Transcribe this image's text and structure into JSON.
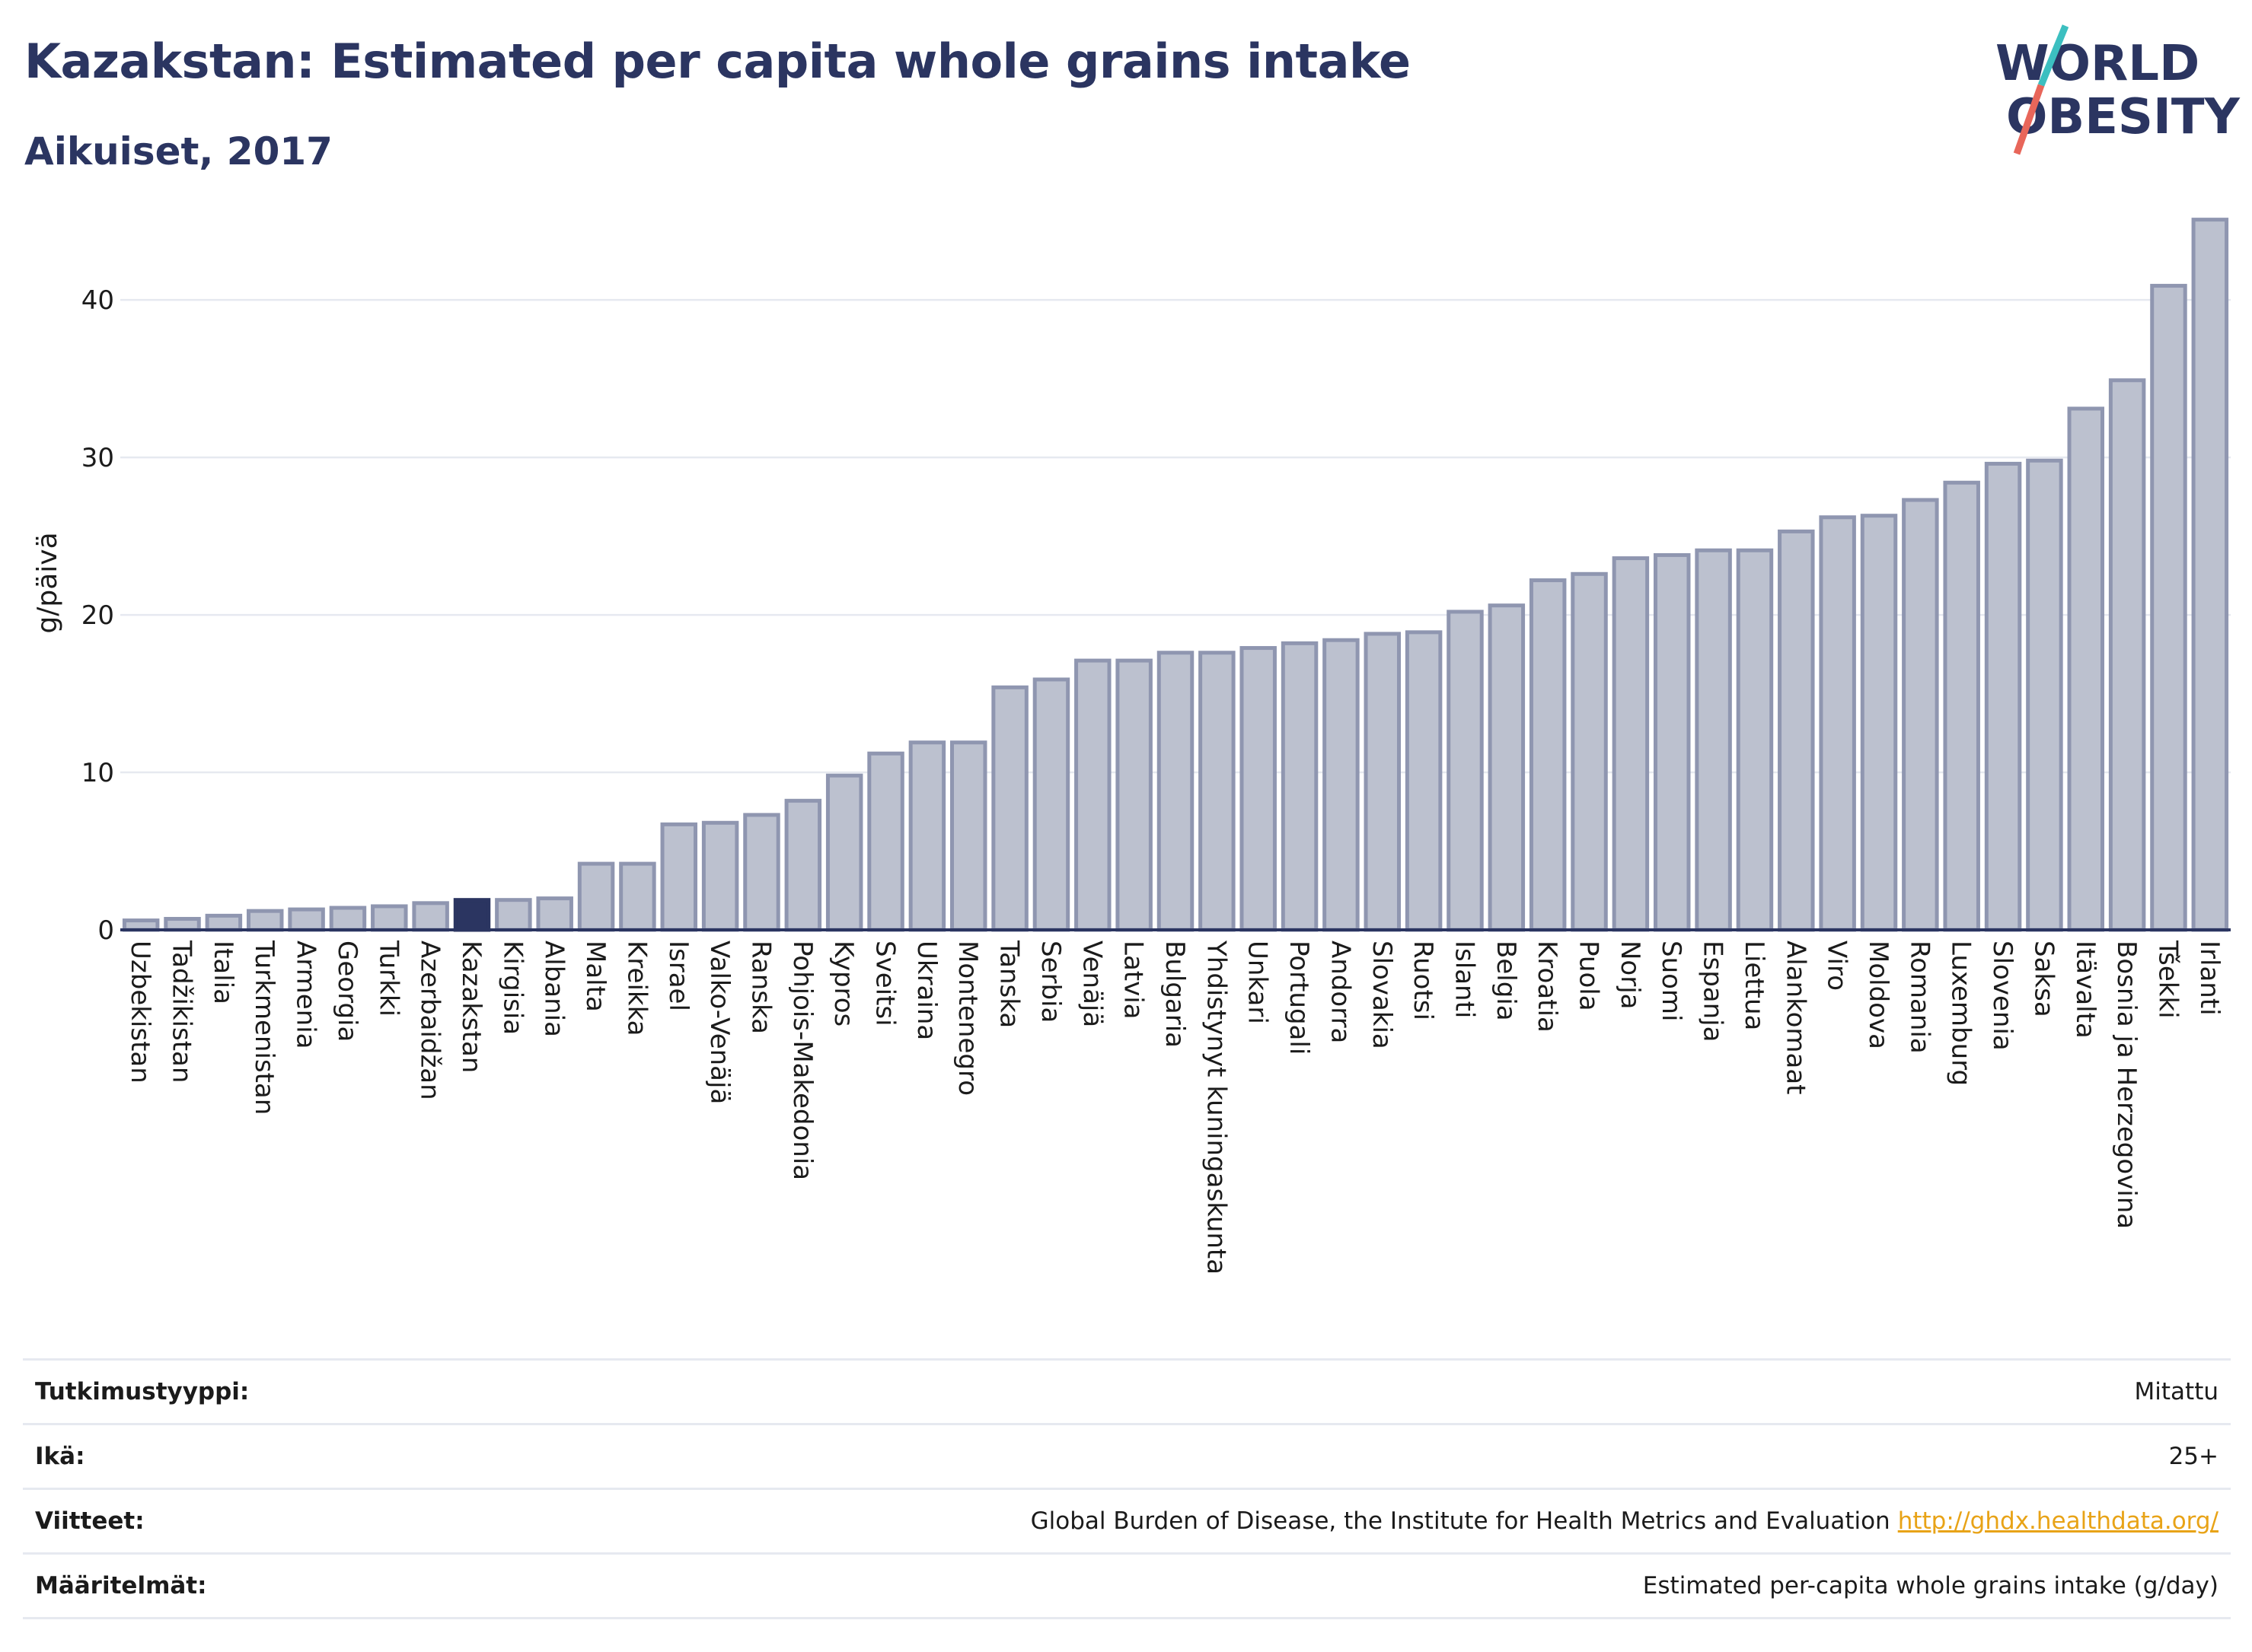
{
  "header": {
    "title": "Kazakstan: Estimated per capita whole grains intake",
    "subtitle": "Aikuiset, 2017"
  },
  "logo": {
    "line1": "WORLD",
    "line2": "OBESITY",
    "colors": {
      "text": "#2b3561",
      "slash_top": "#3cbfc0",
      "slash_bottom": "#e8665a"
    }
  },
  "colors": {
    "bar_default": "#bcc1cf",
    "bar_border": "#8f96b0",
    "bar_highlight": "#2b3561",
    "axis": "#2b3561",
    "grid": "#e6e9f0"
  },
  "chart_data": {
    "type": "bar",
    "ylabel": "g/päivä",
    "ylim": [
      0,
      46
    ],
    "yticks": [
      0,
      10,
      20,
      30,
      40
    ],
    "grid": true,
    "highlight": "Kazakstan",
    "categories": [
      "Uzbekistan",
      "Tadžikistan",
      "Italia",
      "Turkmenistan",
      "Armenia",
      "Georgia",
      "Turkki",
      "Azerbaidžan",
      "Kazakstan",
      "Kirgisia",
      "Albania",
      "Malta",
      "Kreikka",
      "Israel",
      "Valko-Venäjä",
      "Ranska",
      "Pohjois-Makedonia",
      "Kypros",
      "Sveitsi",
      "Ukraina",
      "Montenegro",
      "Tanska",
      "Serbia",
      "Venäjä",
      "Latvia",
      "Bulgaria",
      "Yhdistynyt kuningaskunta",
      "Unkari",
      "Portugali",
      "Andorra",
      "Slovakia",
      "Ruotsi",
      "Islanti",
      "Belgia",
      "Kroatia",
      "Puola",
      "Norja",
      "Suomi",
      "Espanja",
      "Liettua",
      "Alankomaat",
      "Viro",
      "Moldova",
      "Romania",
      "Luxemburg",
      "Slovenia",
      "Saksa",
      "Itävalta",
      "Bosnia ja Herzegovina",
      "Tšekki",
      "Irlanti"
    ],
    "values": [
      0.6,
      0.7,
      0.9,
      1.2,
      1.3,
      1.4,
      1.5,
      1.7,
      1.9,
      1.9,
      2.0,
      4.2,
      4.2,
      6.7,
      6.8,
      7.3,
      8.2,
      9.8,
      11.2,
      11.9,
      11.9,
      15.4,
      15.9,
      17.1,
      17.1,
      17.6,
      17.6,
      17.9,
      18.2,
      18.4,
      18.8,
      18.9,
      20.2,
      20.6,
      22.2,
      22.6,
      23.6,
      23.8,
      24.1,
      24.1,
      25.3,
      26.2,
      26.3,
      27.3,
      28.4,
      29.6,
      29.8,
      33.1,
      34.9,
      40.9,
      45.1
    ]
  },
  "footer": {
    "rows": [
      {
        "label": "Tutkimustyyppi:",
        "value": "Mitattu"
      },
      {
        "label": "Ikä:",
        "value": "25+"
      },
      {
        "label": "Viitteet:",
        "value": "Global Burden of Disease, the Institute for Health Metrics and Evaluation",
        "link": "http://ghdx.healthdata.org/"
      },
      {
        "label": "Määritelmät:",
        "value": "Estimated per-capita whole grains intake (g/day)"
      }
    ]
  }
}
